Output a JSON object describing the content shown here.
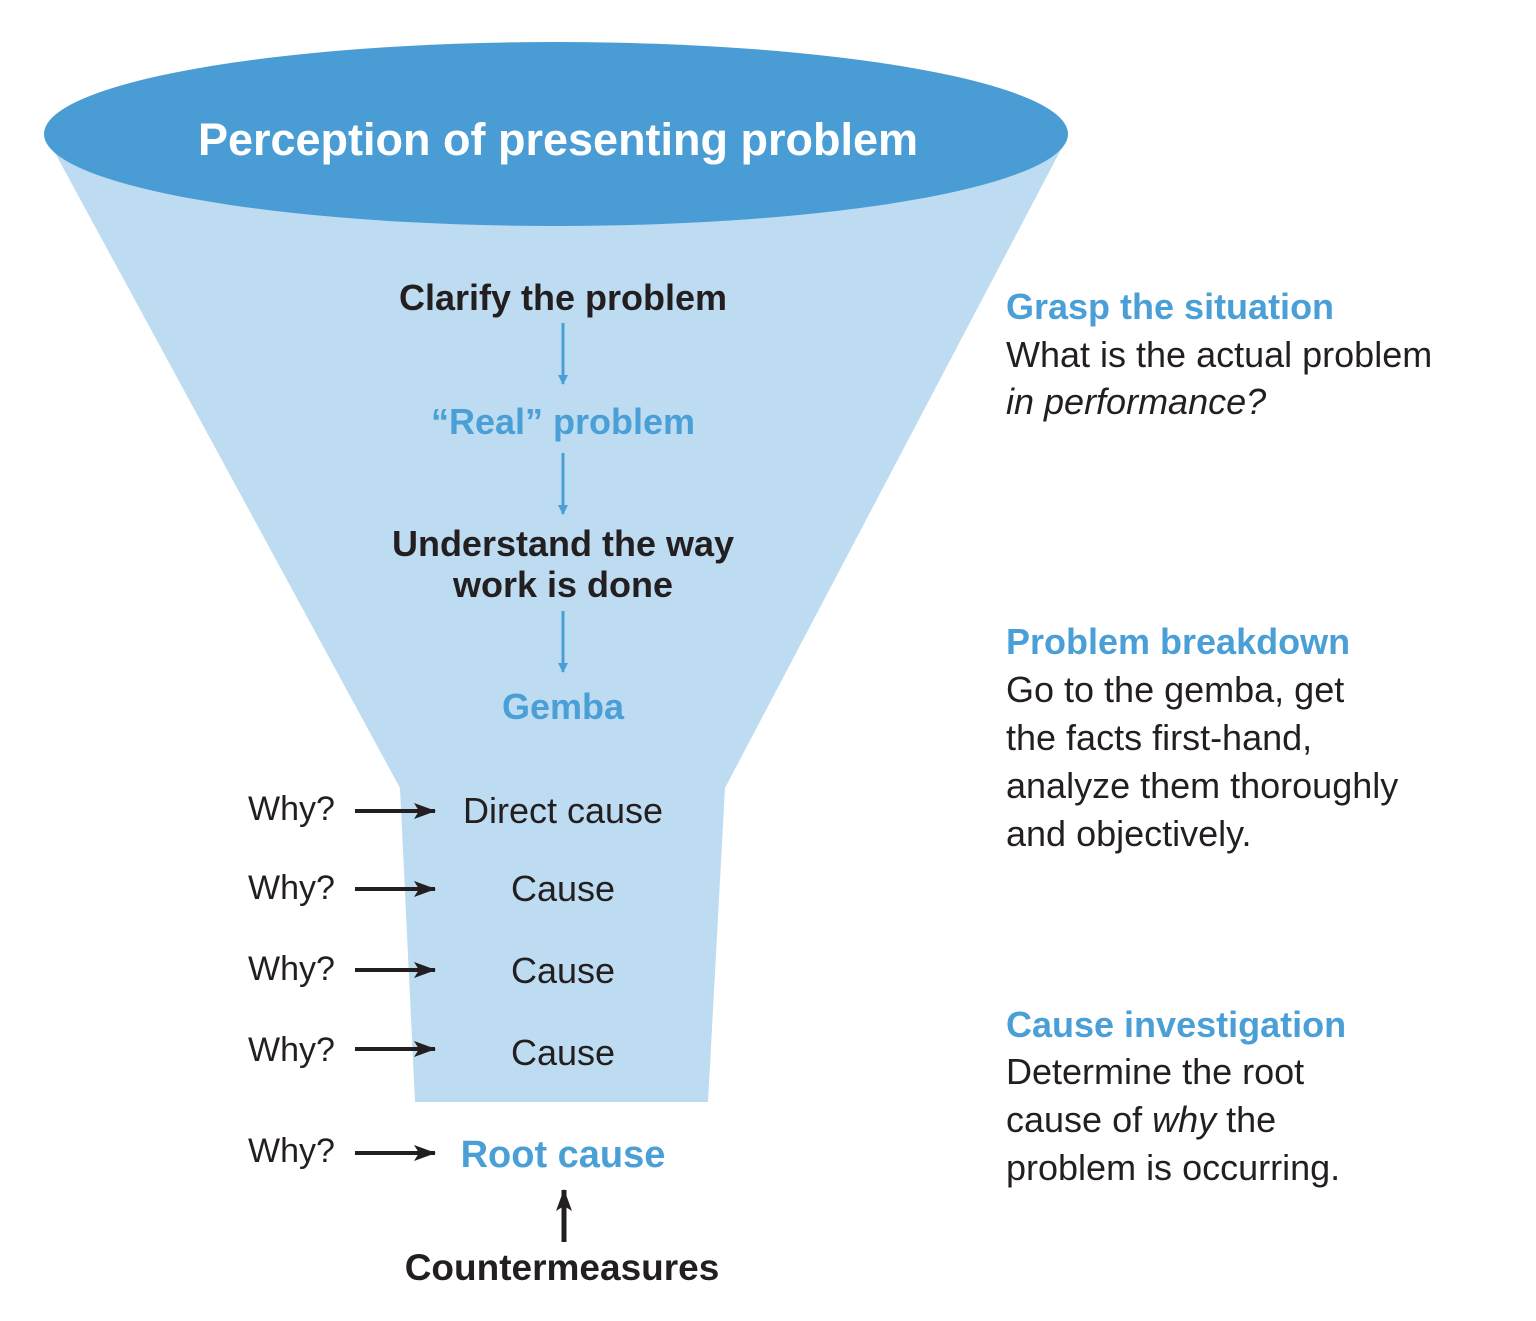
{
  "colors": {
    "ellipse": "#4a9dd4",
    "funnel": "#bddcf1",
    "accent_text": "#4a9fd6",
    "dark_text": "#231f20"
  },
  "funnel": {
    "top_label": "Perception of presenting problem",
    "steps": [
      "Clarify the problem",
      "“Real” problem",
      "Understand the way",
      "work is done",
      "Gemba"
    ],
    "causes": [
      "Direct cause",
      "Cause",
      "Cause",
      "Cause"
    ],
    "why_label": "Why?",
    "root_cause": "Root cause",
    "countermeasures": "Countermeasures"
  },
  "sections": [
    {
      "heading": "Grasp the situation",
      "lines": [
        "What is the actual problem",
        "in performance?"
      ]
    },
    {
      "heading": "Problem breakdown",
      "lines": [
        "Go to the gemba, get",
        "the facts first-hand,",
        "analyze them thoroughly",
        "and objectively."
      ]
    },
    {
      "heading": "Cause investigation",
      "line1": "Determine the root",
      "line2a": "cause of ",
      "line2b": "why",
      "line2c": " the",
      "line3": "problem is occurring."
    }
  ]
}
